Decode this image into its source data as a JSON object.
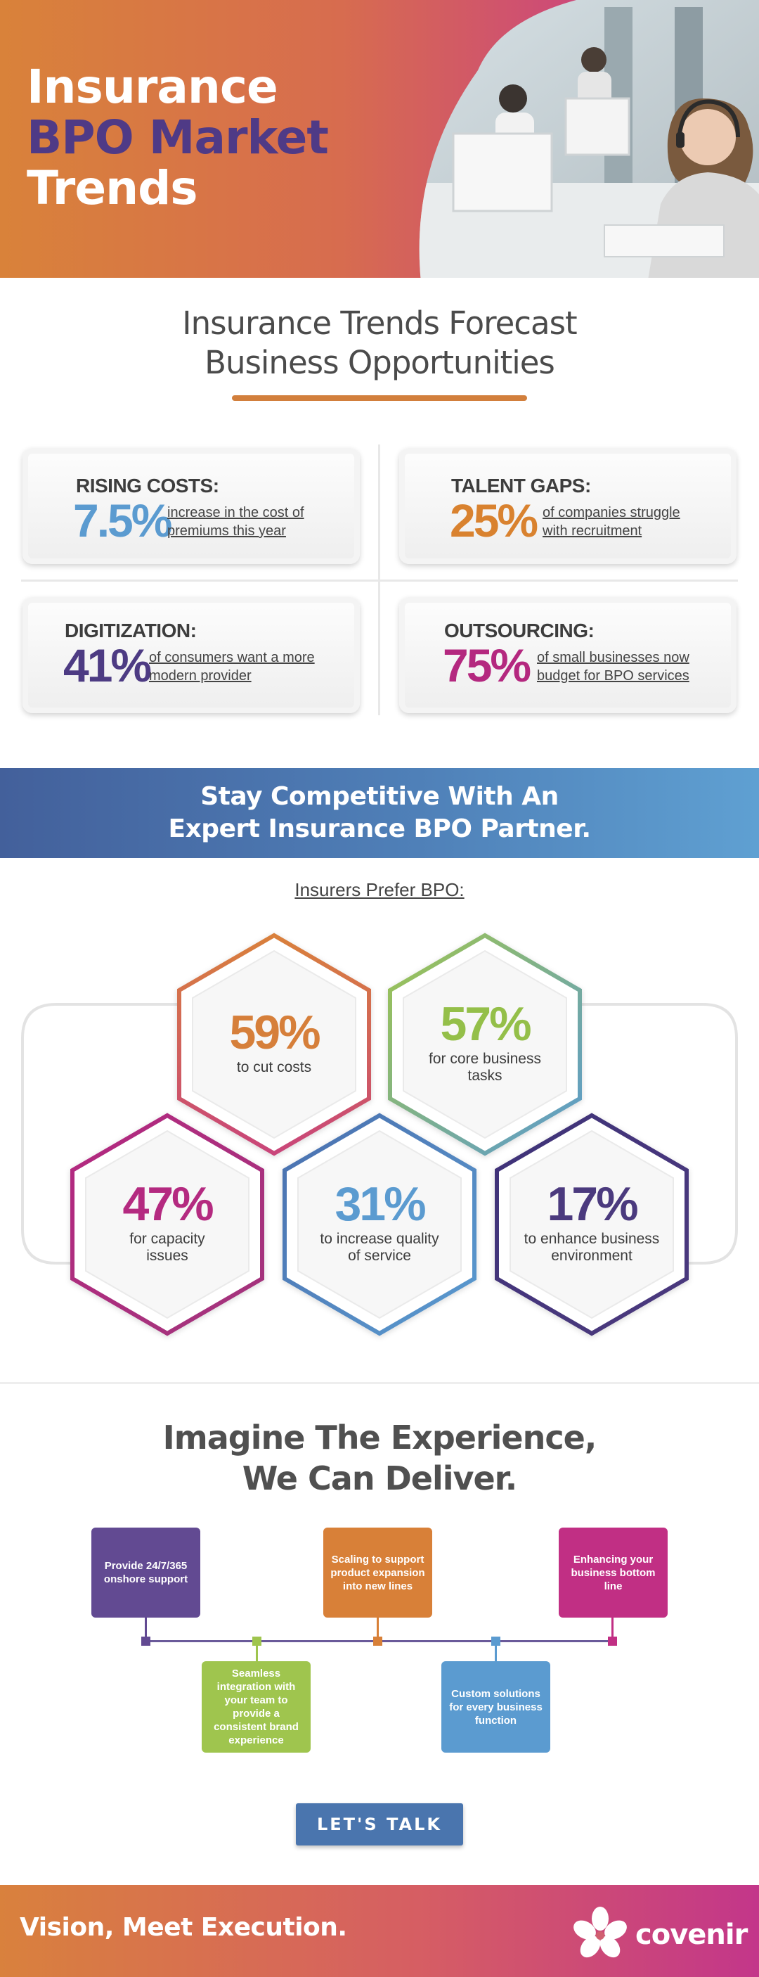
{
  "hero": {
    "title_line1": "Insurance",
    "title_line2": "BPO Market",
    "title_line3": "Trends",
    "photo_description": "customer-service-agents-headsets"
  },
  "forecast": {
    "title_line1": "Insurance Trends Forecast",
    "title_line2": "Business Opportunities",
    "cards": [
      {
        "label": "RISING COSTS:",
        "value": "7.5%",
        "desc_line1": "increase in the cost of",
        "desc_line2": "premiums this year",
        "color": "#5b9bd0"
      },
      {
        "label": "TALENT GAPS:",
        "value": "25%",
        "desc_line1": "of companies struggle",
        "desc_line2": "with recruitment",
        "color": "#d9822f"
      },
      {
        "label": "DIGITIZATION:",
        "value": "41%",
        "desc_line1": "of consumers want a more",
        "desc_line2": "modern provider",
        "color": "#4d3b83"
      },
      {
        "label": "OUTSOURCING:",
        "value": "75%",
        "desc_line1": "of small businesses now",
        "desc_line2": "budget for BPO services",
        "color": "#b4287f"
      }
    ]
  },
  "banner": {
    "line1": "Stay Competitive With An",
    "line2": "Expert Insurance BPO Partner."
  },
  "prefer": {
    "heading": "Insurers Prefer BPO:",
    "items": [
      {
        "value": "59%",
        "desc_line1": "to cut costs",
        "desc_line2": "",
        "color": "#d67f3a",
        "stroke": "orange-pink"
      },
      {
        "value": "57%",
        "desc_line1": "for core business",
        "desc_line2": "tasks",
        "color": "#94bf49",
        "stroke": "green-blue"
      },
      {
        "value": "47%",
        "desc_line1": "for capacity",
        "desc_line2": "issues",
        "color": "#b42a80",
        "stroke": "magenta"
      },
      {
        "value": "31%",
        "desc_line1": "to increase quality",
        "desc_line2": "of service",
        "color": "#5b9bd0",
        "stroke": "blue"
      },
      {
        "value": "17%",
        "desc_line1": "to enhance business",
        "desc_line2": "environment",
        "color": "#4b3a7e",
        "stroke": "purple"
      }
    ]
  },
  "experience": {
    "title_line1": "Imagine The Experience,",
    "title_line2": "We Can Deliver.",
    "steps": [
      {
        "text": "Provide 24/7/365 onshore support",
        "color": "#624a92"
      },
      {
        "text": "Seamless integration with your team to provide a consistent brand experience",
        "color": "#9fc54e"
      },
      {
        "text": "Scaling to support product expansion into new lines",
        "color": "#d88038"
      },
      {
        "text": "Custom solutions for every business function",
        "color": "#5b9bd0"
      },
      {
        "text": "Enhancing your business bottom line",
        "color": "#c12f84"
      }
    ]
  },
  "cta": {
    "label": "LET'S TALK"
  },
  "footer": {
    "tagline": "Vision, Meet Execution.",
    "logo_text": "covenir",
    "logo_icon": "flower-petal-icon"
  }
}
